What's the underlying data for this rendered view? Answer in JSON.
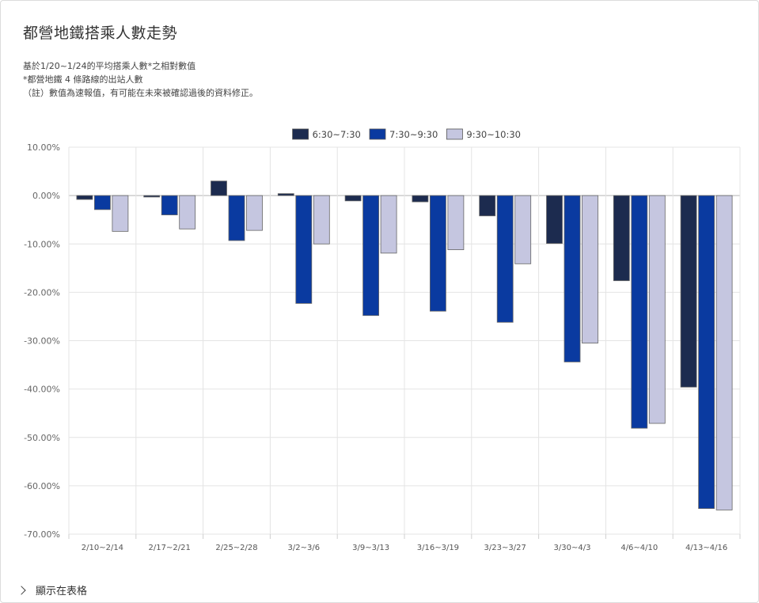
{
  "title": "都營地鐵搭乘人數走勢",
  "notes": [
    "基於1/20~1/24的平均搭乘人數*之相對數值",
    "*都營地鐵 4 條路線的出站人數",
    "（註）數值為速報值，有可能在未來被確認過後的資料修正。"
  ],
  "table_toggle": {
    "label": "顯示在表格",
    "icon": "chevron-right-icon"
  },
  "chart_data": {
    "type": "bar",
    "categories": [
      "2/10~2/14",
      "2/17~2/21",
      "2/25~2/28",
      "3/2~3/6",
      "3/9~3/13",
      "3/16~3/19",
      "3/23~3/27",
      "3/30~4/3",
      "4/6~4/10",
      "4/13~4/16"
    ],
    "series": [
      {
        "name": "6:30~7:30",
        "color": "#1c2b4f",
        "values": [
          -0.8,
          -0.3,
          3.0,
          0.4,
          -1.1,
          -1.3,
          -4.2,
          -9.9,
          -17.6,
          -39.6
        ]
      },
      {
        "name": "7:30~9:30",
        "color": "#0a3aa0",
        "values": [
          -2.9,
          -4.0,
          -9.3,
          -22.3,
          -24.8,
          -23.9,
          -26.2,
          -34.4,
          -48.1,
          -64.7
        ]
      },
      {
        "name": "9:30~10:30",
        "color": "#c5c6e0",
        "values": [
          -7.4,
          -6.9,
          -7.2,
          -10.0,
          -11.9,
          -11.2,
          -14.1,
          -30.5,
          -47.1,
          -65.0
        ]
      }
    ],
    "y_ticks": [
      "10.00%",
      "0.00%",
      "-10.00%",
      "-20.00%",
      "-30.00%",
      "-40.00%",
      "-50.00%",
      "-60.00%",
      "-70.00%"
    ],
    "ylim": [
      -70,
      10
    ],
    "legend_position": "top-center",
    "grid": true
  }
}
